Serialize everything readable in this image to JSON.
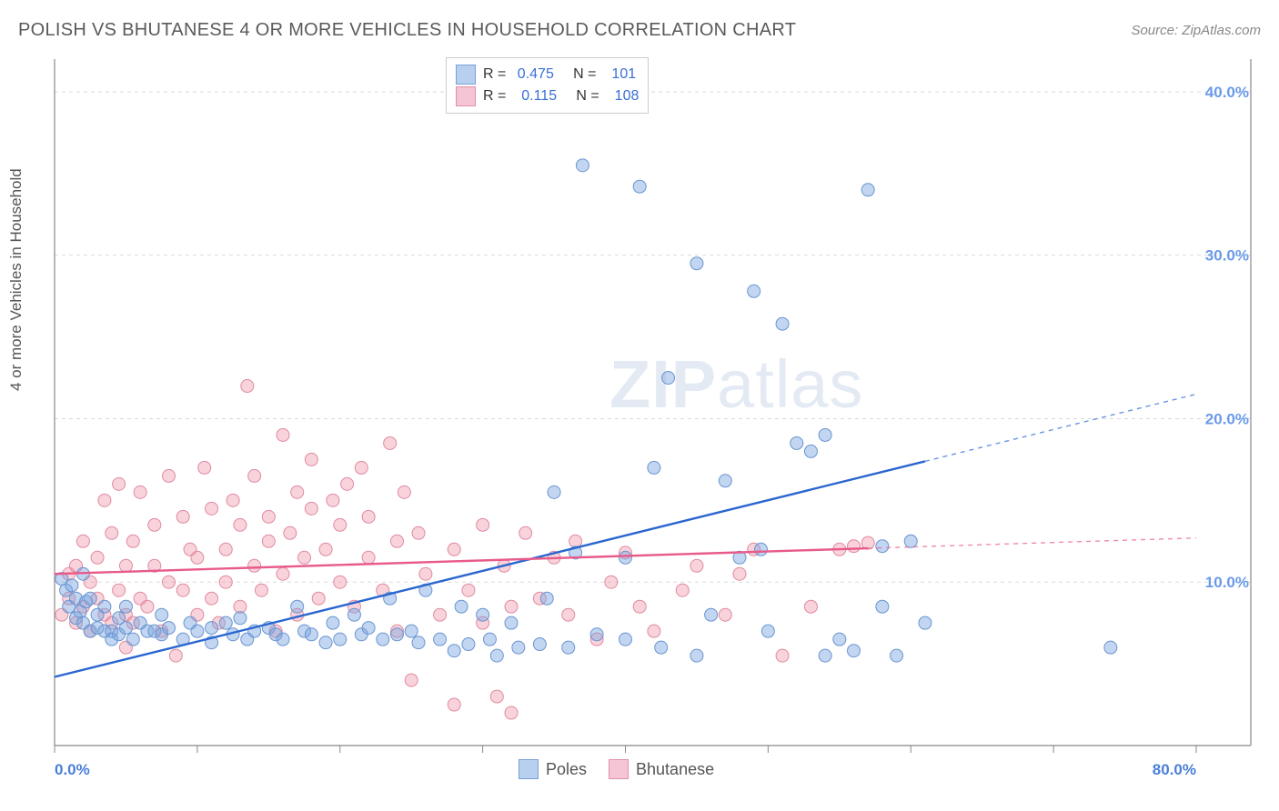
{
  "title": "POLISH VS BHUTANESE 4 OR MORE VEHICLES IN HOUSEHOLD CORRELATION CHART",
  "source": "Source: ZipAtlas.com",
  "ylabel": "4 or more Vehicles in Household",
  "watermark": "ZIPatlas",
  "chart": {
    "type": "scatter",
    "xlim": [
      0,
      80
    ],
    "ylim": [
      0,
      42
    ],
    "background_color": "#ffffff",
    "grid_color": "#dadada",
    "axis_color": "#888888",
    "xtick_positions": [
      0,
      10,
      20,
      30,
      40,
      50,
      60,
      70,
      80
    ],
    "xtick_labels": {
      "0": "0.0%",
      "80": "80.0%"
    },
    "ytick_positions": [
      10,
      20,
      30,
      40
    ],
    "ytick_labels": {
      "10": "10.0%",
      "20": "20.0%",
      "30": "30.0%",
      "40": "40.0%"
    },
    "series": [
      {
        "name": "Poles",
        "color_fill": "rgba(120,165,225,0.45)",
        "color_stroke": "#6a95d0",
        "line_color": "#2a66d0",
        "marker_radius": 7,
        "R": "0.475",
        "N": "101",
        "regression": {
          "x1": 0,
          "y1": 4.2,
          "x2": 80,
          "y2": 21.5
        },
        "regression_solid_xmax": 61,
        "points": [
          [
            0.5,
            10.2
          ],
          [
            0.8,
            9.5
          ],
          [
            1.0,
            8.5
          ],
          [
            1.2,
            9.8
          ],
          [
            1.5,
            9.0
          ],
          [
            1.5,
            7.8
          ],
          [
            1.8,
            8.2
          ],
          [
            2.0,
            10.5
          ],
          [
            2.0,
            7.5
          ],
          [
            2.2,
            8.8
          ],
          [
            2.5,
            7.0
          ],
          [
            2.5,
            9.0
          ],
          [
            3.0,
            8.0
          ],
          [
            3.0,
            7.2
          ],
          [
            3.5,
            8.5
          ],
          [
            3.5,
            7.0
          ],
          [
            4.0,
            7.0
          ],
          [
            4.0,
            6.5
          ],
          [
            4.5,
            7.8
          ],
          [
            4.5,
            6.8
          ],
          [
            5.0,
            7.2
          ],
          [
            5.0,
            8.5
          ],
          [
            5.5,
            6.5
          ],
          [
            6.0,
            7.5
          ],
          [
            6.5,
            7.0
          ],
          [
            7.0,
            7.0
          ],
          [
            7.5,
            8.0
          ],
          [
            7.5,
            6.8
          ],
          [
            8.0,
            7.2
          ],
          [
            9.0,
            6.5
          ],
          [
            9.5,
            7.5
          ],
          [
            10.0,
            7.0
          ],
          [
            11.0,
            7.2
          ],
          [
            11.0,
            6.3
          ],
          [
            12.0,
            7.5
          ],
          [
            12.5,
            6.8
          ],
          [
            13.0,
            7.8
          ],
          [
            13.5,
            6.5
          ],
          [
            14.0,
            7.0
          ],
          [
            15.0,
            7.2
          ],
          [
            15.5,
            6.8
          ],
          [
            16.0,
            6.5
          ],
          [
            17.0,
            8.5
          ],
          [
            17.5,
            7.0
          ],
          [
            18.0,
            6.8
          ],
          [
            19.0,
            6.3
          ],
          [
            19.5,
            7.5
          ],
          [
            20.0,
            6.5
          ],
          [
            21.0,
            8.0
          ],
          [
            21.5,
            6.8
          ],
          [
            22.0,
            7.2
          ],
          [
            23.0,
            6.5
          ],
          [
            23.5,
            9.0
          ],
          [
            24.0,
            6.8
          ],
          [
            25.0,
            7.0
          ],
          [
            25.5,
            6.3
          ],
          [
            26.0,
            9.5
          ],
          [
            27.0,
            6.5
          ],
          [
            28.0,
            5.8
          ],
          [
            28.5,
            8.5
          ],
          [
            29.0,
            6.2
          ],
          [
            30.0,
            8.0
          ],
          [
            30.5,
            6.5
          ],
          [
            31.0,
            5.5
          ],
          [
            32.0,
            7.5
          ],
          [
            32.5,
            6.0
          ],
          [
            34.0,
            6.2
          ],
          [
            34.5,
            9.0
          ],
          [
            35.0,
            15.5
          ],
          [
            36.0,
            6.0
          ],
          [
            36.5,
            11.8
          ],
          [
            37.0,
            35.5
          ],
          [
            38.0,
            6.8
          ],
          [
            40.0,
            11.5
          ],
          [
            40.0,
            6.5
          ],
          [
            41.0,
            34.2
          ],
          [
            42.0,
            17.0
          ],
          [
            42.5,
            6.0
          ],
          [
            43.0,
            22.5
          ],
          [
            45.0,
            5.5
          ],
          [
            45.0,
            29.5
          ],
          [
            46.0,
            8.0
          ],
          [
            47.0,
            16.2
          ],
          [
            48.0,
            11.5
          ],
          [
            49.0,
            27.8
          ],
          [
            49.5,
            12.0
          ],
          [
            50.0,
            7.0
          ],
          [
            51.0,
            25.8
          ],
          [
            52.0,
            18.5
          ],
          [
            53.0,
            18.0
          ],
          [
            54.0,
            5.5
          ],
          [
            54.0,
            19.0
          ],
          [
            55.0,
            6.5
          ],
          [
            56.0,
            5.8
          ],
          [
            57.0,
            34.0
          ],
          [
            58.0,
            12.2
          ],
          [
            58.0,
            8.5
          ],
          [
            59.0,
            5.5
          ],
          [
            60.0,
            12.5
          ],
          [
            61.0,
            7.5
          ],
          [
            74.0,
            6.0
          ]
        ]
      },
      {
        "name": "Bhutanese",
        "color_fill": "rgba(240,150,170,0.42)",
        "color_stroke": "#e08aa0",
        "line_color": "#e85a8a",
        "marker_radius": 7,
        "R": "0.115",
        "N": "108",
        "regression": {
          "x1": 0,
          "y1": 10.5,
          "x2": 80,
          "y2": 12.7
        },
        "regression_solid_xmax": 57,
        "points": [
          [
            0.5,
            8.0
          ],
          [
            1.0,
            9.0
          ],
          [
            1.0,
            10.5
          ],
          [
            1.5,
            7.5
          ],
          [
            1.5,
            11.0
          ],
          [
            2.0,
            8.5
          ],
          [
            2.0,
            12.5
          ],
          [
            2.5,
            7.0
          ],
          [
            2.5,
            10.0
          ],
          [
            3.0,
            11.5
          ],
          [
            3.0,
            9.0
          ],
          [
            3.5,
            8.0
          ],
          [
            3.5,
            15.0
          ],
          [
            4.0,
            7.5
          ],
          [
            4.0,
            13.0
          ],
          [
            4.5,
            9.5
          ],
          [
            4.5,
            16.0
          ],
          [
            5.0,
            8.0
          ],
          [
            5.0,
            11.0
          ],
          [
            5.0,
            6.0
          ],
          [
            5.5,
            12.5
          ],
          [
            5.5,
            7.5
          ],
          [
            6.0,
            9.0
          ],
          [
            6.0,
            15.5
          ],
          [
            6.5,
            8.5
          ],
          [
            7.0,
            11.0
          ],
          [
            7.0,
            13.5
          ],
          [
            7.5,
            7.0
          ],
          [
            8.0,
            10.0
          ],
          [
            8.0,
            16.5
          ],
          [
            8.5,
            5.5
          ],
          [
            9.0,
            9.5
          ],
          [
            9.0,
            14.0
          ],
          [
            9.5,
            12.0
          ],
          [
            10.0,
            8.0
          ],
          [
            10.0,
            11.5
          ],
          [
            10.5,
            17.0
          ],
          [
            11.0,
            9.0
          ],
          [
            11.0,
            14.5
          ],
          [
            11.5,
            7.5
          ],
          [
            12.0,
            12.0
          ],
          [
            12.0,
            10.0
          ],
          [
            12.5,
            15.0
          ],
          [
            13.0,
            8.5
          ],
          [
            13.0,
            13.5
          ],
          [
            13.5,
            22.0
          ],
          [
            14.0,
            11.0
          ],
          [
            14.0,
            16.5
          ],
          [
            14.5,
            9.5
          ],
          [
            15.0,
            14.0
          ],
          [
            15.0,
            12.5
          ],
          [
            15.5,
            7.0
          ],
          [
            16.0,
            19.0
          ],
          [
            16.0,
            10.5
          ],
          [
            16.5,
            13.0
          ],
          [
            17.0,
            15.5
          ],
          [
            17.0,
            8.0
          ],
          [
            17.5,
            11.5
          ],
          [
            18.0,
            17.5
          ],
          [
            18.0,
            14.5
          ],
          [
            18.5,
            9.0
          ],
          [
            19.0,
            12.0
          ],
          [
            19.5,
            15.0
          ],
          [
            20.0,
            13.5
          ],
          [
            20.0,
            10.0
          ],
          [
            20.5,
            16.0
          ],
          [
            21.0,
            8.5
          ],
          [
            21.5,
            17.0
          ],
          [
            22.0,
            11.5
          ],
          [
            22.0,
            14.0
          ],
          [
            23.0,
            9.5
          ],
          [
            23.5,
            18.5
          ],
          [
            24.0,
            7.0
          ],
          [
            24.0,
            12.5
          ],
          [
            24.5,
            15.5
          ],
          [
            25.0,
            4.0
          ],
          [
            25.5,
            13.0
          ],
          [
            26.0,
            10.5
          ],
          [
            27.0,
            8.0
          ],
          [
            28.0,
            12.0
          ],
          [
            28.0,
            2.5
          ],
          [
            29.0,
            9.5
          ],
          [
            30.0,
            13.5
          ],
          [
            30.0,
            7.5
          ],
          [
            31.0,
            3.0
          ],
          [
            31.5,
            11.0
          ],
          [
            32.0,
            8.5
          ],
          [
            32.0,
            2.0
          ],
          [
            33.0,
            13.0
          ],
          [
            34.0,
            9.0
          ],
          [
            35.0,
            11.5
          ],
          [
            36.0,
            8.0
          ],
          [
            36.5,
            12.5
          ],
          [
            38.0,
            6.5
          ],
          [
            39.0,
            10.0
          ],
          [
            40.0,
            11.8
          ],
          [
            41.0,
            8.5
          ],
          [
            42.0,
            7.0
          ],
          [
            44.0,
            9.5
          ],
          [
            45.0,
            11.0
          ],
          [
            47.0,
            8.0
          ],
          [
            48.0,
            10.5
          ],
          [
            49.0,
            12.0
          ],
          [
            51.0,
            5.5
          ],
          [
            53.0,
            8.5
          ],
          [
            55.0,
            12.0
          ],
          [
            56.0,
            12.2
          ],
          [
            57.0,
            12.4
          ]
        ]
      }
    ]
  },
  "legend_top": [
    {
      "swatch_fill": "#b8d0f0",
      "swatch_stroke": "#7aa0d8",
      "r_label": "R = ",
      "r_val": "0.475",
      "n_label": "   N = ",
      "n_val": " 101"
    },
    {
      "swatch_fill": "#f5c5d5",
      "swatch_stroke": "#e090a8",
      "r_label": "R = ",
      "r_val": " 0.115",
      "n_label": "   N = ",
      "n_val": " 108"
    }
  ],
  "legend_bottom": [
    {
      "swatch_fill": "#b8d0f0",
      "swatch_stroke": "#7aa0d8",
      "label": "Poles"
    },
    {
      "swatch_fill": "#f5c5d5",
      "swatch_stroke": "#e090a8",
      "label": "Bhutanese"
    }
  ]
}
